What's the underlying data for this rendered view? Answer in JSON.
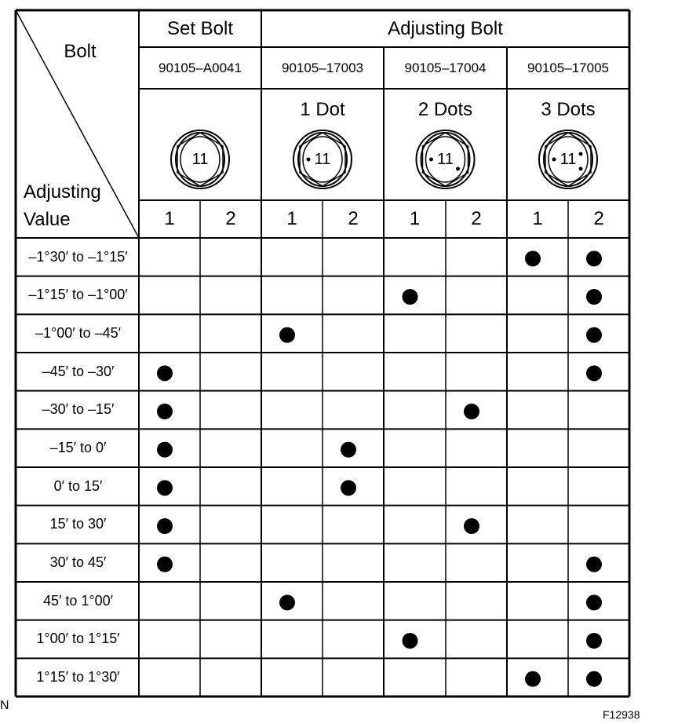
{
  "header": {
    "corner_top": "Bolt",
    "corner_bottom_line1": "Adjusting",
    "corner_bottom_line2": "Value",
    "groups": [
      {
        "label": "Set Bolt"
      },
      {
        "label": "Adjusting Bolt"
      }
    ],
    "bolts": [
      {
        "part_no": "90105–A0041",
        "marking": "",
        "head_number": "11",
        "dots": 0
      },
      {
        "part_no": "90105–17003",
        "marking": "1 Dot",
        "head_number": "11",
        "dots": 1
      },
      {
        "part_no": "90105–17004",
        "marking": "2 Dots",
        "head_number": "11",
        "dots": 2
      },
      {
        "part_no": "90105–17005",
        "marking": "3 Dots",
        "head_number": "11",
        "dots": 3
      }
    ],
    "sub_columns": [
      "1",
      "2",
      "1",
      "2",
      "1",
      "2",
      "1",
      "2"
    ]
  },
  "rows": [
    {
      "label": "–1°30′ to –1°15′",
      "marks": [
        6,
        7
      ]
    },
    {
      "label": "–1°15′ to –1°00′",
      "marks": [
        4,
        7
      ]
    },
    {
      "label": "–1°00′ to –45′",
      "marks": [
        2,
        7
      ]
    },
    {
      "label": "–45′ to –30′",
      "marks": [
        0,
        7
      ]
    },
    {
      "label": "–30′ to –15′",
      "marks": [
        0,
        5
      ]
    },
    {
      "label": "–15′ to 0′",
      "marks": [
        0,
        3
      ]
    },
    {
      "label": "0′ to 15′",
      "marks": [
        0,
        3
      ]
    },
    {
      "label": "15′ to 30′",
      "marks": [
        0,
        5
      ]
    },
    {
      "label": "30′ to 45′",
      "marks": [
        0,
        7
      ]
    },
    {
      "label": "45′ to 1°00′",
      "marks": [
        2,
        7
      ]
    },
    {
      "label": "1°00′ to 1°15′",
      "marks": [
        4,
        7
      ]
    },
    {
      "label": "1°15′ to 1°30′",
      "marks": [
        6,
        7
      ]
    }
  ],
  "footer": {
    "left_mark": "N",
    "figure_id": "F12938"
  }
}
